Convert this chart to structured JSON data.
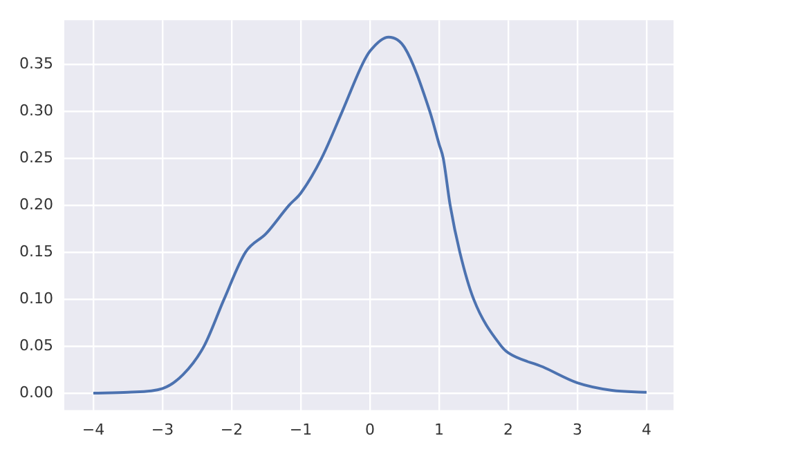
{
  "chart_data": {
    "type": "line",
    "xlim": [
      -4.42,
      4.39
    ],
    "ylim": [
      -0.018,
      0.397
    ],
    "xticks": [
      {
        "value": -4,
        "label": "−4"
      },
      {
        "value": -3,
        "label": "−3"
      },
      {
        "value": -2,
        "label": "−2"
      },
      {
        "value": -1,
        "label": "−1"
      },
      0,
      1,
      2,
      3,
      4
    ],
    "yticks": [
      {
        "value": 0,
        "label": "0.00"
      },
      {
        "value": 0.05,
        "label": "0.05"
      },
      {
        "value": 0.1,
        "label": "0.10"
      },
      {
        "value": 0.15,
        "label": "0.15"
      },
      {
        "value": 0.2,
        "label": "0.20"
      },
      {
        "value": 0.25,
        "label": "0.25"
      },
      {
        "value": 0.3,
        "label": "0.30"
      },
      {
        "value": 0.35,
        "label": "0.35"
      }
    ],
    "grid": true,
    "legend": false,
    "marker": "none",
    "line_style": "solid",
    "series": [
      {
        "color": "#4c72b0",
        "x": [
          -4,
          -3.5,
          -3,
          -2.7,
          -2.4,
          -2.11,
          -1.8,
          -1.5,
          -1.17,
          -1,
          -0.7,
          -0.4,
          -0.11,
          0,
          0.27,
          0.5,
          0.865,
          1,
          1.06,
          1.16,
          1.3,
          1.5,
          1.9,
          2,
          2.5,
          3,
          3.5,
          4
        ],
        "values": [
          0,
          0.001,
          0.005,
          0.02,
          0.05,
          0.1,
          0.15,
          0.17,
          0.2,
          0.213,
          0.25,
          0.3,
          0.35,
          0.364,
          0.379,
          0.368,
          0.3,
          0.265,
          0.25,
          0.2,
          0.15,
          0.1,
          0.05,
          0.043,
          0.028,
          0.011,
          0.003,
          0.001
        ]
      }
    ]
  }
}
